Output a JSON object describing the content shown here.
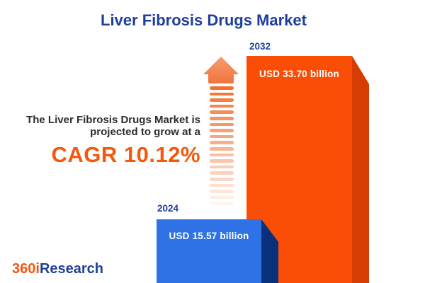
{
  "title": "Liver Fibrosis Drugs Market",
  "annotation": {
    "line1": "The Liver Fibrosis Drugs Market is",
    "line2": "projected to grow at a",
    "cagr": "CAGR 10.12%"
  },
  "chart_data": {
    "type": "bar",
    "title": "Liver Fibrosis Drugs Market",
    "categories": [
      "2024",
      "2032"
    ],
    "values": [
      15.57,
      33.7
    ],
    "unit": "USD billion",
    "value_labels": [
      "USD 15.57 billion",
      "USD 33.70 billion"
    ],
    "cagr_percent": 10.12,
    "bar_colors": [
      "#2f72e6",
      "#fa4e06"
    ],
    "bar_side_colors": [
      "#08307d",
      "#d63d02"
    ],
    "legend_position": "none",
    "axes": "none"
  },
  "logo": {
    "prefix": "360i",
    "suffix": "Research"
  },
  "colors": {
    "heading_blue": "#1e3f9b",
    "accent_orange": "#f4580e",
    "bar_blue": "#2f72e6",
    "bar_blue_side": "#08307d",
    "bar_orange": "#fa4e06",
    "bar_orange_side": "#d63d02",
    "annotation_text": "#2d2d2d",
    "arrow_orange": "#f4702f",
    "arrow_head_top": "#f79a6e",
    "arrow_head_bottom": "#f2753f"
  },
  "arrow": {
    "dash_count": 20
  }
}
